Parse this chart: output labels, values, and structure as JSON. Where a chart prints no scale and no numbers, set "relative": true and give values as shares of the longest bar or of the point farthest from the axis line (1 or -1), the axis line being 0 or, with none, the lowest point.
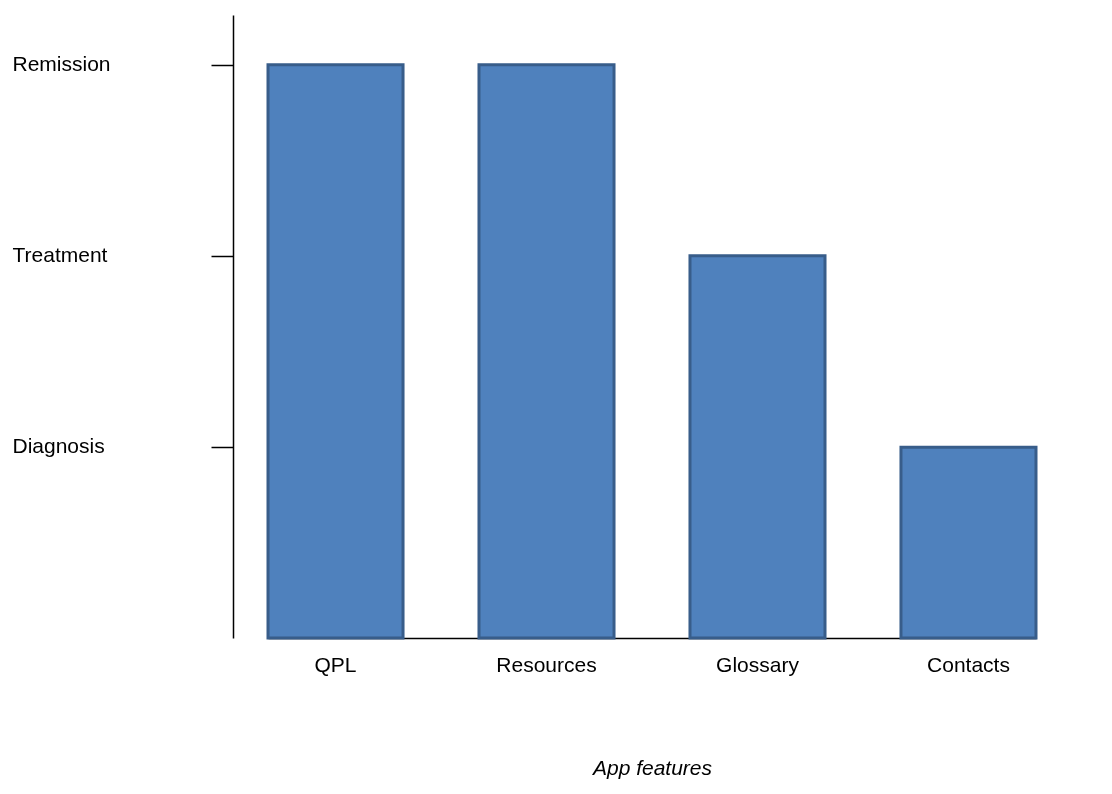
{
  "chart_data": {
    "type": "bar",
    "xlabel": "App features",
    "categories": [
      "QPL",
      "Resources",
      "Glossary",
      "Contacts"
    ],
    "values": [
      1,
      1,
      0.667,
      0.333
    ],
    "relative": true,
    "color": "#4f81bd",
    "annotations": [
      "Diagnosis",
      "Treatment",
      "Remission"
    ],
    "grid": false
  }
}
